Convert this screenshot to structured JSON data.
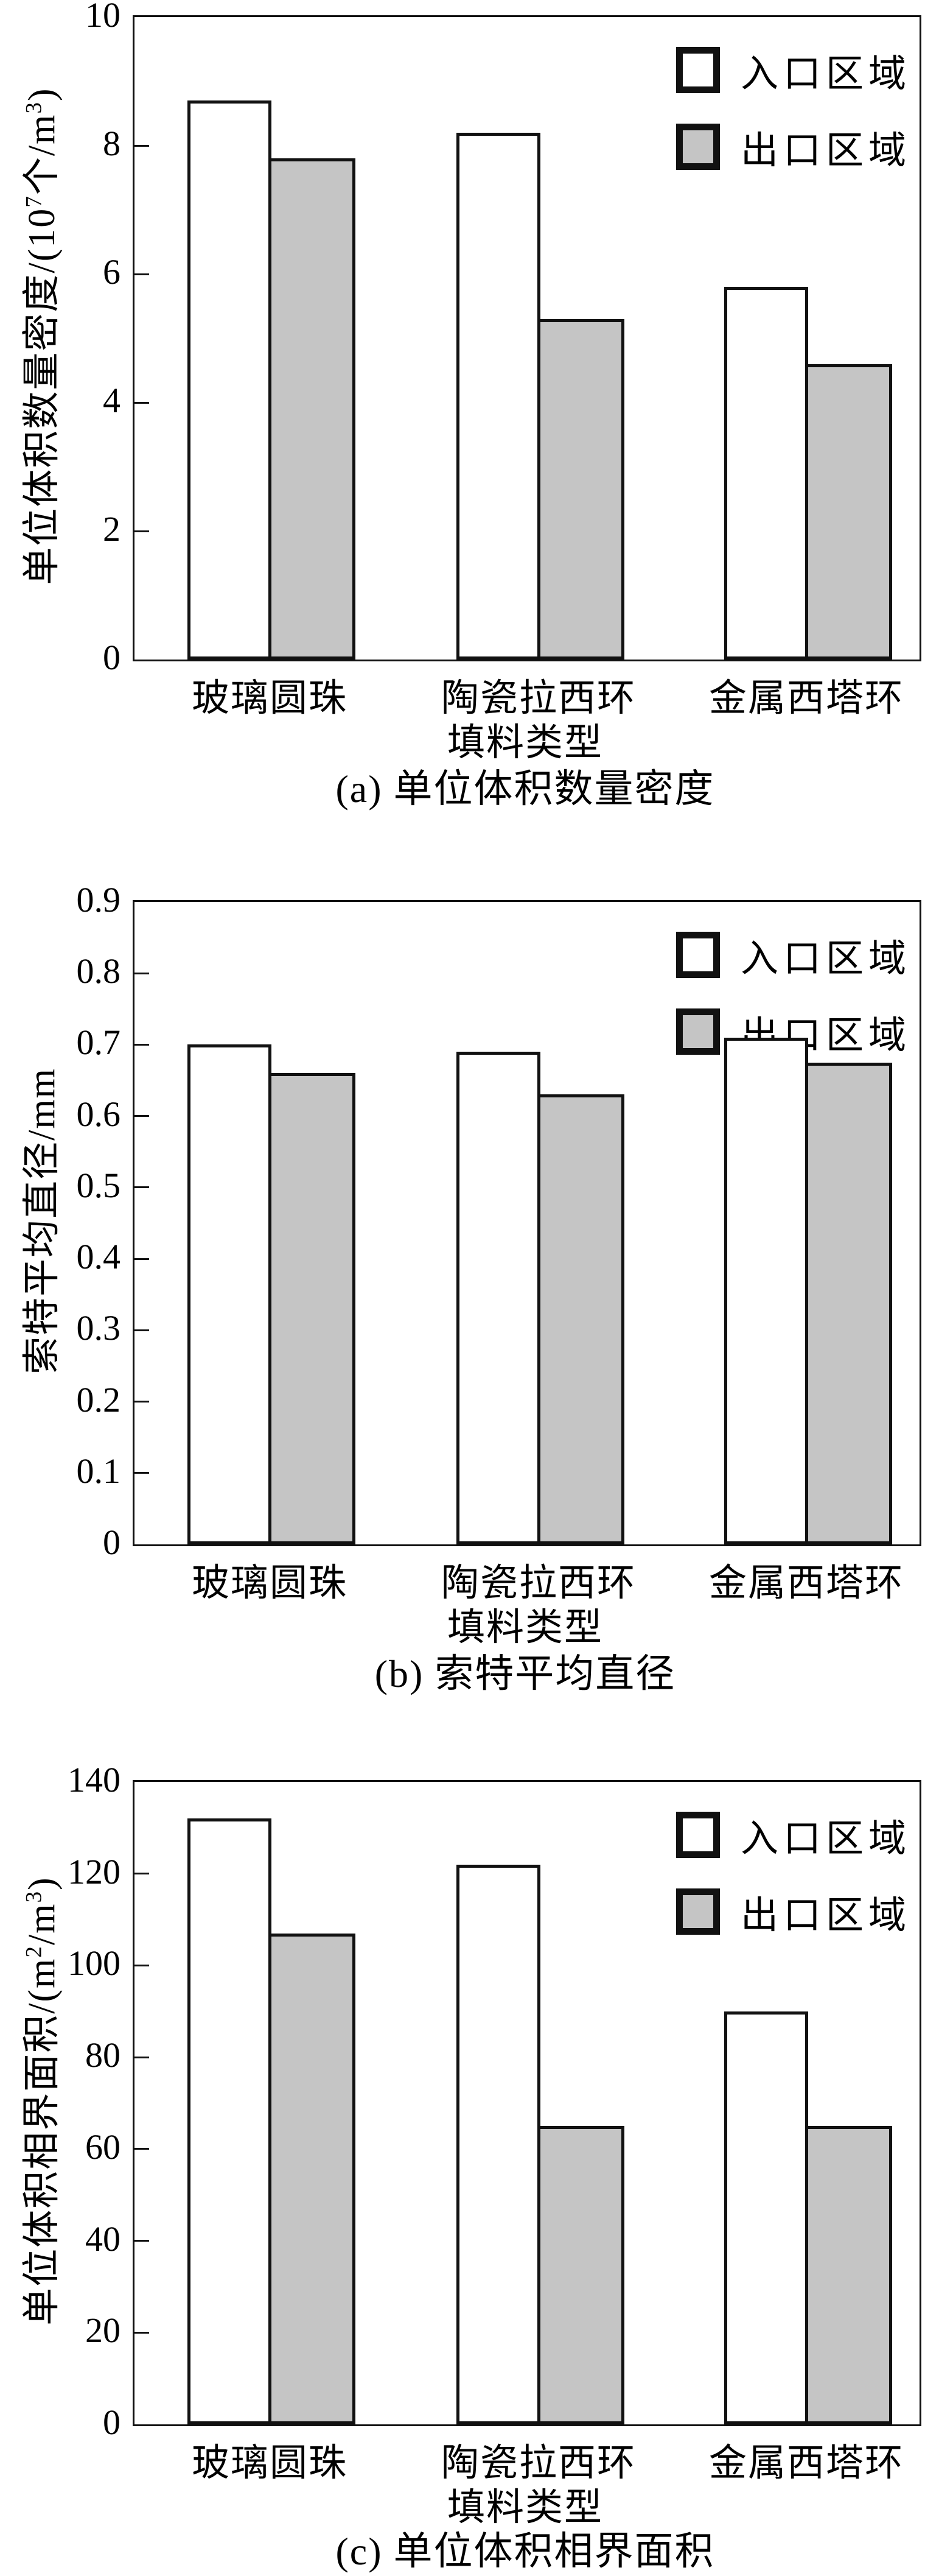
{
  "figure": {
    "background": "#ffffff",
    "line_color": "#111111",
    "legend": {
      "position": "top-right",
      "items": [
        {
          "label": "入口区域",
          "fill": "#ffffff"
        },
        {
          "label": "出口区域",
          "fill": "#c5c5c5"
        }
      ]
    }
  },
  "chart_data": [
    {
      "type": "bar",
      "panel": "(a)",
      "title": "(a) 单位体积数量密度",
      "xlabel": "填料类型",
      "ylabel": "单位体积数量密度/(10⁷个/m³)",
      "ylabel_parts": [
        {
          "text": "单位体积数量密度/(10"
        },
        {
          "text": "7",
          "sup": true
        },
        {
          "text": "个/m"
        },
        {
          "text": "3",
          "sup": true
        },
        {
          "text": ")"
        }
      ],
      "categories": [
        "玻璃圆珠",
        "陶瓷拉西环",
        "金属西塔环"
      ],
      "series": [
        {
          "name": "入口区域",
          "fill": "#ffffff",
          "values": [
            8.7,
            8.2,
            5.8
          ]
        },
        {
          "name": "出口区域",
          "fill": "#c5c5c5",
          "values": [
            7.8,
            5.3,
            4.6
          ]
        }
      ],
      "ylim": [
        0,
        10
      ],
      "yticks": [
        "0",
        "2",
        "4",
        "6",
        "8",
        "10"
      ],
      "grid": false,
      "legend_position": "top-right"
    },
    {
      "type": "bar",
      "panel": "(b)",
      "title": "(b) 索特平均直径",
      "xlabel": "填料类型",
      "ylabel": "索特平均直径/mm",
      "ylabel_parts": [
        {
          "text": "索特平均直径/mm"
        }
      ],
      "categories": [
        "玻璃圆珠",
        "陶瓷拉西环",
        "金属西塔环"
      ],
      "series": [
        {
          "name": "入口区域",
          "fill": "#ffffff",
          "values": [
            0.7,
            0.69,
            0.71
          ]
        },
        {
          "name": "出口区域",
          "fill": "#c5c5c5",
          "values": [
            0.66,
            0.63,
            0.675
          ]
        }
      ],
      "ylim": [
        0,
        0.9
      ],
      "yticks": [
        "0",
        "0.1",
        "0.2",
        "0.3",
        "0.4",
        "0.5",
        "0.6",
        "0.7",
        "0.8",
        "0.9"
      ],
      "grid": false,
      "legend_position": "top-right"
    },
    {
      "type": "bar",
      "panel": "(c)",
      "title": "(c) 单位体积相界面积",
      "xlabel": "填料类型",
      "ylabel": "单位体积相界面积/(m²/m³)",
      "ylabel_parts": [
        {
          "text": "单位体积相界面积/(m"
        },
        {
          "text": "2",
          "sup": true
        },
        {
          "text": "/m"
        },
        {
          "text": "3",
          "sup": true
        },
        {
          "text": ")"
        }
      ],
      "categories": [
        "玻璃圆珠",
        "陶瓷拉西环",
        "金属西塔环"
      ],
      "series": [
        {
          "name": "入口区域",
          "fill": "#ffffff",
          "values": [
            132,
            122,
            90
          ]
        },
        {
          "name": "出口区域",
          "fill": "#c5c5c5",
          "values": [
            107,
            65,
            65
          ]
        }
      ],
      "ylim": [
        0,
        140
      ],
      "yticks": [
        "0",
        "20",
        "40",
        "60",
        "80",
        "100",
        "120",
        "140"
      ],
      "grid": false,
      "legend_position": "top-right"
    }
  ]
}
